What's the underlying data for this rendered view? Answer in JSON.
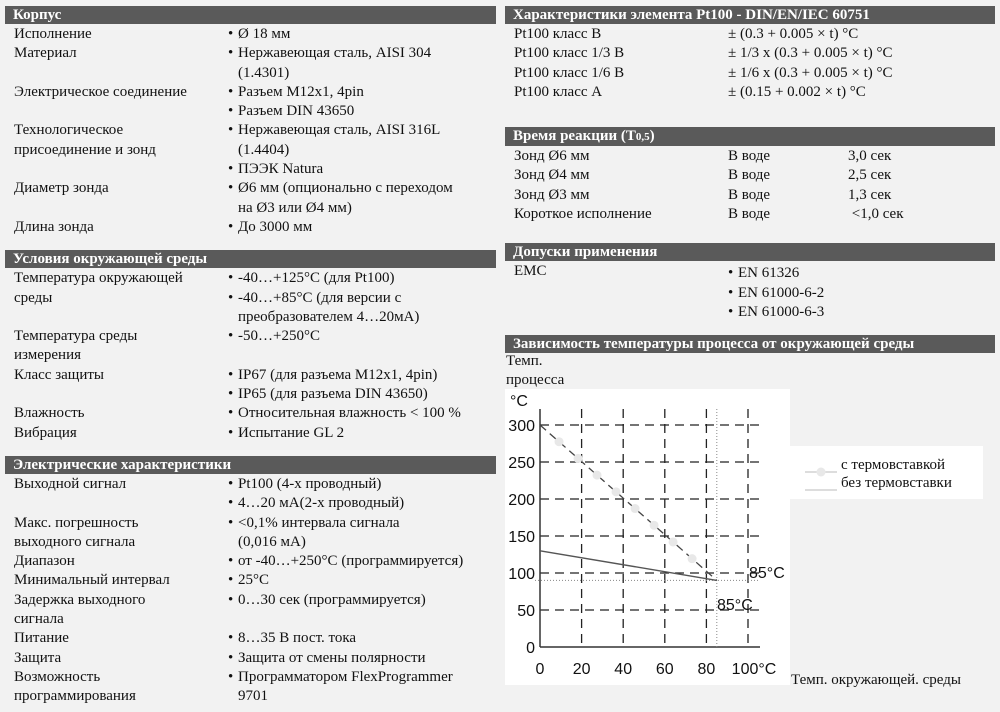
{
  "left": [
    {
      "title": "Корпус",
      "rows": [
        {
          "label": "Исполнение",
          "items": [
            "Ø 18 мм"
          ]
        },
        {
          "label": "Материал",
          "items": [
            "Нержавеющая сталь, AISI 304\n(1.4301)"
          ]
        },
        {
          "label": "Электрическое соединение",
          "items": [
            "Разъем M12x1, 4pin",
            "Разъем DIN 43650"
          ]
        },
        {
          "label": "Технологическое\nприсоединение и зонд",
          "items": [
            "Нержавеющая сталь, AISI 316L\n(1.4404)",
            "ПЭЭК Natura"
          ]
        },
        {
          "label": "Диаметр зонда",
          "items": [
            "Ø6 мм (опционально с переходом\nна Ø3 или Ø4 мм)"
          ]
        },
        {
          "label": "Длина зонда",
          "items": [
            "До 3000 мм"
          ]
        }
      ]
    },
    {
      "title": "Условия окружающей среды",
      "rows": [
        {
          "label": "Температура окружающей\nсреды",
          "items": [
            "-40…+125°C (для Pt100)",
            "-40…+85°C (для версии с\nпреобразователем 4…20мА)"
          ]
        },
        {
          "label": "Температура среды\nизмерения",
          "items": [
            "-50…+250°C"
          ]
        },
        {
          "label": "Класс защиты",
          "items": [
            "IP67 (для разъема M12x1, 4pin)",
            "IP65 (для разъема DIN 43650)"
          ]
        },
        {
          "label": "Влажность",
          "items": [
            "Относительная влажность < 100 %"
          ]
        },
        {
          "label": "Вибрация",
          "items": [
            "Испытание GL 2"
          ]
        }
      ]
    },
    {
      "title": "Электрические характеристики",
      "rows": [
        {
          "label": "Выходной сигнал",
          "items": [
            "Pt100 (4-х проводный)",
            "4…20 мА(2-х проводный)"
          ]
        },
        {
          "label": "Макс. погрешность\nвыходного сигнала",
          "items": [
            "<0,1% интервала сигнала\n(0,016 мА)"
          ]
        },
        {
          "label": "Диапазон",
          "items": [
            "от -40…+250°C (программируется)"
          ]
        },
        {
          "label": "Минимальный интервал",
          "items": [
            "25°C"
          ]
        },
        {
          "label": "Задержка выходного\nсигнала",
          "items": [
            "0…30 сек (программируется)"
          ]
        },
        {
          "label": "Питание",
          "items": [
            "8…35 В пост. тока"
          ]
        },
        {
          "label": "Защита",
          "items": [
            "Защита от смены полярности"
          ]
        },
        {
          "label": "Возможность\nпрограммирования",
          "items": [
            "Программатором FlexProgrammer\n9701"
          ]
        }
      ]
    }
  ],
  "pt100": {
    "title": "Характеристики элемента Pt100 - DIN/EN/IEC 60751",
    "rows": [
      {
        "label": "Pt100 класс B",
        "value": "± (0.3 + 0.005 × t) °C"
      },
      {
        "label": "Pt100 класс 1/3 B",
        "value": "± 1/3 x (0.3 + 0.005 × t) °C"
      },
      {
        "label": "Pt100 класс 1/6 B",
        "value": "± 1/6 x   (0.3 + 0.005 × t) °C"
      },
      {
        "label": "Pt100 класс A",
        "value": "± (0.15 + 0.002 × t) °C"
      }
    ]
  },
  "response": {
    "title": "Время реакции (T",
    "title_sub": "0,5",
    "title_end": ")",
    "rows": [
      {
        "label": "Зонд Ø6 мм",
        "medium": "В воде",
        "time": "3,0 сек"
      },
      {
        "label": "Зонд Ø4 мм",
        "medium": "В воде",
        "time": "2,5 сек"
      },
      {
        "label": "Зонд Ø3 мм",
        "medium": "В воде",
        "time": "1,3 сек"
      },
      {
        "label": "Короткое исполнение",
        "medium": "В воде",
        "time": " <1,0 сек"
      }
    ]
  },
  "approvals": {
    "title": "Допуски применения",
    "label": "EMC",
    "items": [
      "EN 61326",
      "EN 61000-6-2",
      "EN 61000-6-3"
    ]
  },
  "chart_section": {
    "title": "Зависимость температуры процесса от окружающей среды"
  },
  "chart_data": {
    "type": "line",
    "ylabel": "Темп.\nпроцесса",
    "yunit": "°C",
    "xlabel": "Темп. окружающей. среды",
    "xlim": [
      0,
      100
    ],
    "ylim": [
      0,
      300
    ],
    "xticks": [
      "0",
      "20",
      "40",
      "60",
      "80",
      "100°C"
    ],
    "yticks": [
      "0",
      "50",
      "100",
      "150",
      "200",
      "250",
      "300"
    ],
    "grid": true,
    "legend_position": "right",
    "series": [
      {
        "name": "с термовставкой",
        "style": "dashed-dotted",
        "x": [
          0,
          85
        ],
        "y": [
          300,
          90
        ]
      },
      {
        "name": "без термовставки",
        "style": "solid",
        "x": [
          0,
          85
        ],
        "y": [
          130,
          90
        ]
      }
    ],
    "annotations": [
      "85°C",
      "85°C"
    ],
    "reference": {
      "x": 85,
      "y": 90
    }
  },
  "colors": {
    "header_bg": "#5a5a5a",
    "page_bg": "#f2f2f2"
  }
}
